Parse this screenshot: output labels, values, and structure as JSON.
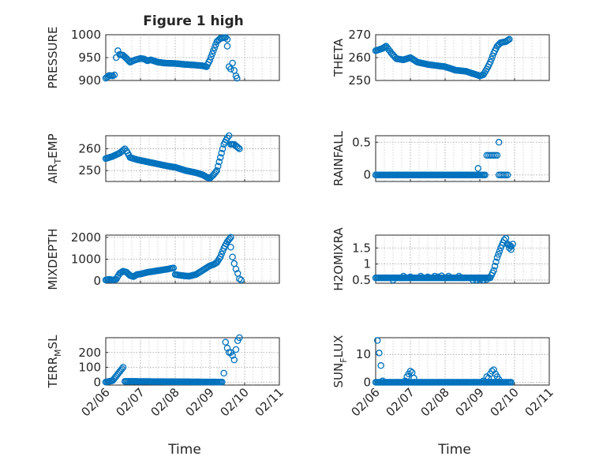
{
  "figure": {
    "title": "Figure 1 high",
    "background": "#ffffff",
    "marker_color": "#0072BD"
  },
  "chart_data": [
    {
      "type": "scatter",
      "ylabel": "PRESSURE",
      "title": "Figure 1 high",
      "xlim": [
        0,
        5
      ],
      "ylim": [
        900,
        1000
      ],
      "yticks": [
        900,
        950,
        1000
      ],
      "ytick_labels": [
        "900",
        "950",
        "1000"
      ],
      "xticks": [
        0,
        1,
        2,
        3,
        4,
        5
      ],
      "xtick_labels": [
        "02/06",
        "02/07",
        "02/08",
        "02/09",
        "02/10",
        "02/11"
      ],
      "show_xlabels": false,
      "xlabel": "",
      "keypoints": [
        [
          0,
          905
        ],
        [
          0.1,
          911
        ],
        [
          0.2,
          910
        ],
        [
          0.25,
          912
        ],
        [
          0.3,
          950
        ],
        [
          0.35,
          965
        ],
        [
          0.4,
          957
        ],
        [
          0.5,
          955
        ],
        [
          0.6,
          948
        ],
        [
          0.7,
          940
        ],
        [
          0.85,
          945
        ],
        [
          1.0,
          948
        ],
        [
          1.1,
          947
        ],
        [
          1.2,
          943
        ],
        [
          1.3,
          945
        ],
        [
          1.5,
          940
        ],
        [
          1.7,
          938
        ],
        [
          2.0,
          937
        ],
        [
          2.3,
          935
        ],
        [
          2.5,
          934
        ],
        [
          2.8,
          932
        ],
        [
          2.9,
          930
        ],
        [
          3.0,
          945
        ],
        [
          3.1,
          965
        ],
        [
          3.2,
          985
        ],
        [
          3.3,
          992
        ],
        [
          3.45,
          994
        ],
        [
          3.5,
          990
        ]
      ],
      "extra_points": [
        [
          3.5,
          975
        ],
        [
          3.55,
          930
        ],
        [
          3.6,
          925
        ],
        [
          3.65,
          938
        ],
        [
          3.7,
          922
        ],
        [
          3.75,
          910
        ],
        [
          3.78,
          905
        ]
      ]
    },
    {
      "type": "scatter",
      "ylabel": "THETA",
      "xlim": [
        0,
        5
      ],
      "ylim": [
        250,
        270
      ],
      "yticks": [
        250,
        260,
        270
      ],
      "ytick_labels": [
        "250",
        "260",
        "270"
      ],
      "xticks": [
        0,
        1,
        2,
        3,
        4,
        5
      ],
      "xtick_labels": [
        "02/06",
        "02/07",
        "02/08",
        "02/09",
        "02/10",
        "02/11"
      ],
      "show_xlabels": false,
      "xlabel": "",
      "keypoints": [
        [
          0,
          263
        ],
        [
          0.2,
          264
        ],
        [
          0.3,
          265
        ],
        [
          0.45,
          262
        ],
        [
          0.6,
          259.5
        ],
        [
          0.8,
          259
        ],
        [
          1.0,
          260
        ],
        [
          1.2,
          258
        ],
        [
          1.5,
          257
        ],
        [
          2.0,
          256
        ],
        [
          2.3,
          254.5
        ],
        [
          2.6,
          254
        ],
        [
          2.8,
          253
        ],
        [
          3.0,
          252
        ],
        [
          3.1,
          252.5
        ],
        [
          3.2,
          255
        ],
        [
          3.3,
          258
        ],
        [
          3.4,
          262
        ],
        [
          3.5,
          265
        ],
        [
          3.6,
          266.5
        ],
        [
          3.75,
          267
        ],
        [
          3.85,
          268
        ]
      ],
      "extra_points": []
    },
    {
      "type": "scatter",
      "ylabel": "AIR_TEMP",
      "xlim": [
        0,
        5
      ],
      "ylim": [
        245,
        266
      ],
      "yticks": [
        250,
        260
      ],
      "ytick_labels": [
        "250",
        "260"
      ],
      "xticks": [
        0,
        1,
        2,
        3,
        4,
        5
      ],
      "xtick_labels": [
        "02/06",
        "02/07",
        "02/08",
        "02/09",
        "02/10",
        "02/11"
      ],
      "show_xlabels": false,
      "xlabel": "",
      "keypoints": [
        [
          0,
          255.5
        ],
        [
          0.2,
          256.5
        ],
        [
          0.4,
          258
        ],
        [
          0.55,
          260
        ],
        [
          0.6,
          259
        ],
        [
          0.7,
          256
        ],
        [
          0.9,
          255
        ],
        [
          1.2,
          254
        ],
        [
          1.5,
          253
        ],
        [
          1.8,
          252
        ],
        [
          2.0,
          251.5
        ],
        [
          2.3,
          250
        ],
        [
          2.6,
          249
        ],
        [
          2.8,
          248
        ],
        [
          2.9,
          247
        ],
        [
          3.0,
          246.5
        ],
        [
          3.1,
          248
        ],
        [
          3.2,
          250
        ],
        [
          3.3,
          256
        ],
        [
          3.4,
          262
        ],
        [
          3.5,
          265
        ],
        [
          3.55,
          266
        ],
        [
          3.6,
          262
        ],
        [
          3.7,
          262
        ],
        [
          3.85,
          260
        ]
      ],
      "extra_points": []
    },
    {
      "type": "scatter",
      "ylabel": "RAINFALL",
      "xlim": [
        0,
        5
      ],
      "ylim": [
        -0.1,
        0.6
      ],
      "yticks": [
        0,
        0.5
      ],
      "ytick_labels": [
        "0",
        "0.5"
      ],
      "xticks": [
        0,
        1,
        2,
        3,
        4,
        5
      ],
      "xtick_labels": [
        "02/06",
        "02/07",
        "02/08",
        "02/09",
        "02/10",
        "02/11"
      ],
      "show_xlabels": false,
      "xlabel": "",
      "keypoints": [
        [
          0,
          0
        ],
        [
          3.15,
          0
        ]
      ],
      "extra_points": [
        [
          2.95,
          0.1
        ],
        [
          3.2,
          0.3
        ],
        [
          3.25,
          0.3
        ],
        [
          3.3,
          0.3
        ],
        [
          3.35,
          0.3
        ],
        [
          3.4,
          0.3
        ],
        [
          3.45,
          0.3
        ],
        [
          3.5,
          0.3
        ],
        [
          3.55,
          0.5
        ],
        [
          3.55,
          0
        ],
        [
          3.6,
          0
        ],
        [
          3.65,
          0
        ],
        [
          3.7,
          0
        ],
        [
          3.75,
          0
        ],
        [
          3.8,
          0
        ]
      ]
    },
    {
      "type": "scatter",
      "ylabel": "MIXDEPTH",
      "xlim": [
        0,
        5
      ],
      "ylim": [
        -100,
        2100
      ],
      "yticks": [
        0,
        1000,
        2000
      ],
      "ytick_labels": [
        "0",
        "1000",
        "2000"
      ],
      "xticks": [
        0,
        1,
        2,
        3,
        4,
        5
      ],
      "xtick_labels": [
        "02/06",
        "02/07",
        "02/08",
        "02/09",
        "02/10",
        "02/11"
      ],
      "show_xlabels": false,
      "xlabel": "",
      "keypoints": [
        [
          0,
          50
        ],
        [
          0.1,
          80
        ],
        [
          0.2,
          50
        ],
        [
          0.3,
          80
        ],
        [
          0.4,
          350
        ],
        [
          0.5,
          450
        ],
        [
          0.6,
          400
        ],
        [
          0.7,
          250
        ],
        [
          0.8,
          200
        ],
        [
          0.9,
          300
        ],
        [
          1.0,
          320
        ],
        [
          1.2,
          400
        ],
        [
          1.4,
          450
        ],
        [
          1.6,
          500
        ],
        [
          1.8,
          550
        ],
        [
          1.95,
          600
        ],
        [
          2.0,
          300
        ],
        [
          2.2,
          250
        ],
        [
          2.4,
          220
        ],
        [
          2.6,
          300
        ],
        [
          2.8,
          500
        ],
        [
          3.0,
          700
        ],
        [
          3.1,
          750
        ],
        [
          3.2,
          850
        ],
        [
          3.3,
          1100
        ],
        [
          3.4,
          1500
        ],
        [
          3.5,
          1800
        ],
        [
          3.6,
          2000
        ]
      ],
      "extra_points": [
        [
          3.6,
          1550
        ],
        [
          3.65,
          1100
        ],
        [
          3.7,
          800
        ],
        [
          3.75,
          550
        ],
        [
          3.8,
          350
        ],
        [
          3.85,
          100
        ],
        [
          3.9,
          50
        ]
      ]
    },
    {
      "type": "scatter",
      "ylabel": "H2OMIXRA",
      "xlim": [
        0,
        5
      ],
      "ylim": [
        0.4,
        1.9
      ],
      "yticks": [
        0.5,
        1,
        1.5
      ],
      "ytick_labels": [
        "0.5",
        "1",
        "1.5"
      ],
      "xticks": [
        0,
        1,
        2,
        3,
        4,
        5
      ],
      "xtick_labels": [
        "02/06",
        "02/07",
        "02/08",
        "02/09",
        "02/10",
        "02/11"
      ],
      "show_xlabels": false,
      "xlabel": "",
      "keypoints": [
        [
          0,
          0.57
        ],
        [
          3.3,
          0.57
        ],
        [
          3.4,
          0.8
        ],
        [
          3.5,
          1.2
        ],
        [
          3.6,
          1.5
        ],
        [
          3.7,
          1.75
        ],
        [
          3.75,
          1.8
        ],
        [
          3.8,
          1.62
        ],
        [
          3.9,
          1.55
        ],
        [
          3.95,
          1.62
        ]
      ],
      "extra_points": [
        [
          0.5,
          0.5
        ],
        [
          0.8,
          0.62
        ],
        [
          1.0,
          0.6
        ],
        [
          1.3,
          0.62
        ],
        [
          1.5,
          0.6
        ],
        [
          1.7,
          0.62
        ],
        [
          1.8,
          0.6
        ],
        [
          1.9,
          0.63
        ],
        [
          2.1,
          0.62
        ],
        [
          2.4,
          0.62
        ],
        [
          2.8,
          0.5
        ],
        [
          2.9,
          0.5
        ],
        [
          3.0,
          0.5
        ],
        [
          3.1,
          0.5
        ],
        [
          3.2,
          0.52
        ],
        [
          3.85,
          1.5
        ],
        [
          3.9,
          1.45
        ]
      ]
    },
    {
      "type": "scatter",
      "ylabel": "TERR_MSL",
      "xlim": [
        0,
        5
      ],
      "ylim": [
        -20,
        300
      ],
      "yticks": [
        0,
        100,
        200
      ],
      "ytick_labels": [
        "0",
        "100",
        "200"
      ],
      "xticks": [
        0,
        1,
        2,
        3,
        4,
        5
      ],
      "xtick_labels": [
        "02/06",
        "02/07",
        "02/08",
        "02/09",
        "02/10",
        "02/11"
      ],
      "show_xlabels": true,
      "xlabel": "Time",
      "keypoints": [
        [
          0,
          0
        ],
        [
          0.1,
          5
        ],
        [
          0.2,
          10
        ],
        [
          0.3,
          40
        ],
        [
          0.4,
          70
        ],
        [
          0.5,
          100
        ],
        [
          0.55,
          5
        ],
        [
          3.35,
          0
        ]
      ],
      "extra_points": [
        [
          3.4,
          60
        ],
        [
          3.45,
          270
        ],
        [
          3.5,
          230
        ],
        [
          3.55,
          200
        ],
        [
          3.6,
          200
        ],
        [
          3.65,
          180
        ],
        [
          3.7,
          150
        ],
        [
          3.75,
          220
        ],
        [
          3.8,
          280
        ],
        [
          3.85,
          300
        ]
      ]
    },
    {
      "type": "scatter",
      "ylabel": "SUN_FLUX",
      "xlim": [
        0,
        5
      ],
      "ylim": [
        -1,
        16
      ],
      "yticks": [
        0,
        10
      ],
      "ytick_labels": [
        "0",
        "10"
      ],
      "xticks": [
        0,
        1,
        2,
        3,
        4,
        5
      ],
      "xtick_labels": [
        "02/06",
        "02/07",
        "02/08",
        "02/09",
        "02/10",
        "02/11"
      ],
      "show_xlabels": true,
      "xlabel": "Time",
      "keypoints": [
        [
          0,
          0
        ],
        [
          3.9,
          0
        ]
      ],
      "extra_points": [
        [
          0.05,
          15
        ],
        [
          0.1,
          10.5
        ],
        [
          0.15,
          6
        ],
        [
          0.2,
          0.5
        ],
        [
          0.85,
          0.5
        ],
        [
          0.9,
          2
        ],
        [
          0.95,
          3
        ],
        [
          1.0,
          4
        ],
        [
          1.05,
          3.5
        ],
        [
          1.1,
          1.5
        ],
        [
          3.1,
          0.5
        ],
        [
          3.2,
          2
        ],
        [
          3.25,
          1.5
        ],
        [
          3.3,
          3
        ],
        [
          3.35,
          4
        ],
        [
          3.4,
          4.5
        ],
        [
          3.45,
          3
        ],
        [
          3.5,
          2
        ],
        [
          3.55,
          1
        ]
      ]
    }
  ],
  "ylabel_parts": {
    "AIR_TEMP": {
      "main": "AIR",
      "sub": "T",
      "rest": "EMP"
    },
    "TERR_MSL": {
      "main": "TERR",
      "sub": "M",
      "rest": "SL"
    },
    "SUN_FLUX": {
      "main": "SUN",
      "sub": "F",
      "rest": "LUX"
    }
  }
}
